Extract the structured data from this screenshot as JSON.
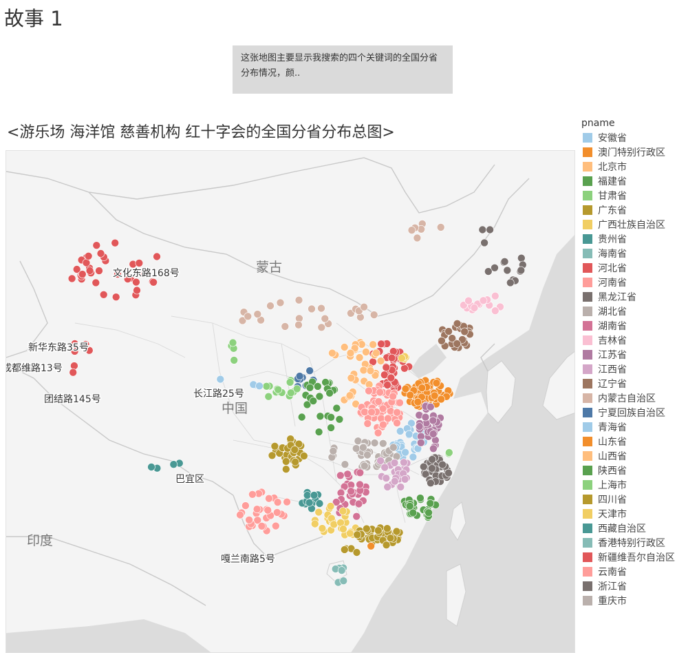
{
  "story": {
    "title": "故事 1"
  },
  "caption": {
    "text": "这张地图主要显示我搜索的四个关键词的全国分省分布情况，颜.."
  },
  "map": {
    "title": "<游乐场 海洋馆 慈善机构 红十字会的全国分省分布总图>",
    "country_labels": {
      "mongolia": "蒙古",
      "china": "中国",
      "india": "印度"
    },
    "place_labels": {
      "wenhua": "文化东路168号",
      "xinhua": "新华东路35号",
      "chengdu": "成都维路13号",
      "tuanjie": "团结路145号",
      "changjiang": "长江路25号",
      "bayi": "巴宜区",
      "galan": "嘎兰南路5号"
    }
  },
  "legend": {
    "title": "pname",
    "items": [
      {
        "name": "安徽省",
        "color": "#a0cbe8"
      },
      {
        "name": "澳门特别行政区",
        "color": "#f28e2b"
      },
      {
        "name": "北京市",
        "color": "#ffbe7d"
      },
      {
        "name": "福建省",
        "color": "#59a14f"
      },
      {
        "name": "甘肃省",
        "color": "#8cd17d"
      },
      {
        "name": "广东省",
        "color": "#b6992d"
      },
      {
        "name": "广西壮族自治区",
        "color": "#f1ce63"
      },
      {
        "name": "贵州省",
        "color": "#499894"
      },
      {
        "name": "海南省",
        "color": "#86bcb6"
      },
      {
        "name": "河北省",
        "color": "#e15759"
      },
      {
        "name": "河南省",
        "color": "#ff9d9a"
      },
      {
        "name": "黑龙江省",
        "color": "#79706e"
      },
      {
        "name": "湖北省",
        "color": "#bab0ac"
      },
      {
        "name": "湖南省",
        "color": "#d37295"
      },
      {
        "name": "吉林省",
        "color": "#fabfd2"
      },
      {
        "name": "江苏省",
        "color": "#b07aa1"
      },
      {
        "name": "江西省",
        "color": "#d4a6c8"
      },
      {
        "name": "辽宁省",
        "color": "#9d7660"
      },
      {
        "name": "内蒙古自治区",
        "color": "#d7b5a6"
      },
      {
        "name": "宁夏回族自治区",
        "color": "#4e79a7"
      },
      {
        "name": "青海省",
        "color": "#a0cbe8"
      },
      {
        "name": "山东省",
        "color": "#f28e2b"
      },
      {
        "name": "山西省",
        "color": "#ffbe7d"
      },
      {
        "name": "陕西省",
        "color": "#59a14f"
      },
      {
        "name": "上海市",
        "color": "#8cd17d"
      },
      {
        "name": "四川省",
        "color": "#b6992d"
      },
      {
        "name": "天津市",
        "color": "#f1ce63"
      },
      {
        "name": "西藏自治区",
        "color": "#499894"
      },
      {
        "name": "香港特别行政区",
        "color": "#86bcb6"
      },
      {
        "name": "新疆维吾尔自治区",
        "color": "#e15759"
      },
      {
        "name": "云南省",
        "color": "#ff9d9a"
      },
      {
        "name": "浙江省",
        "color": "#79706e"
      },
      {
        "name": "重庆市",
        "color": "#bab0ac"
      }
    ]
  }
}
